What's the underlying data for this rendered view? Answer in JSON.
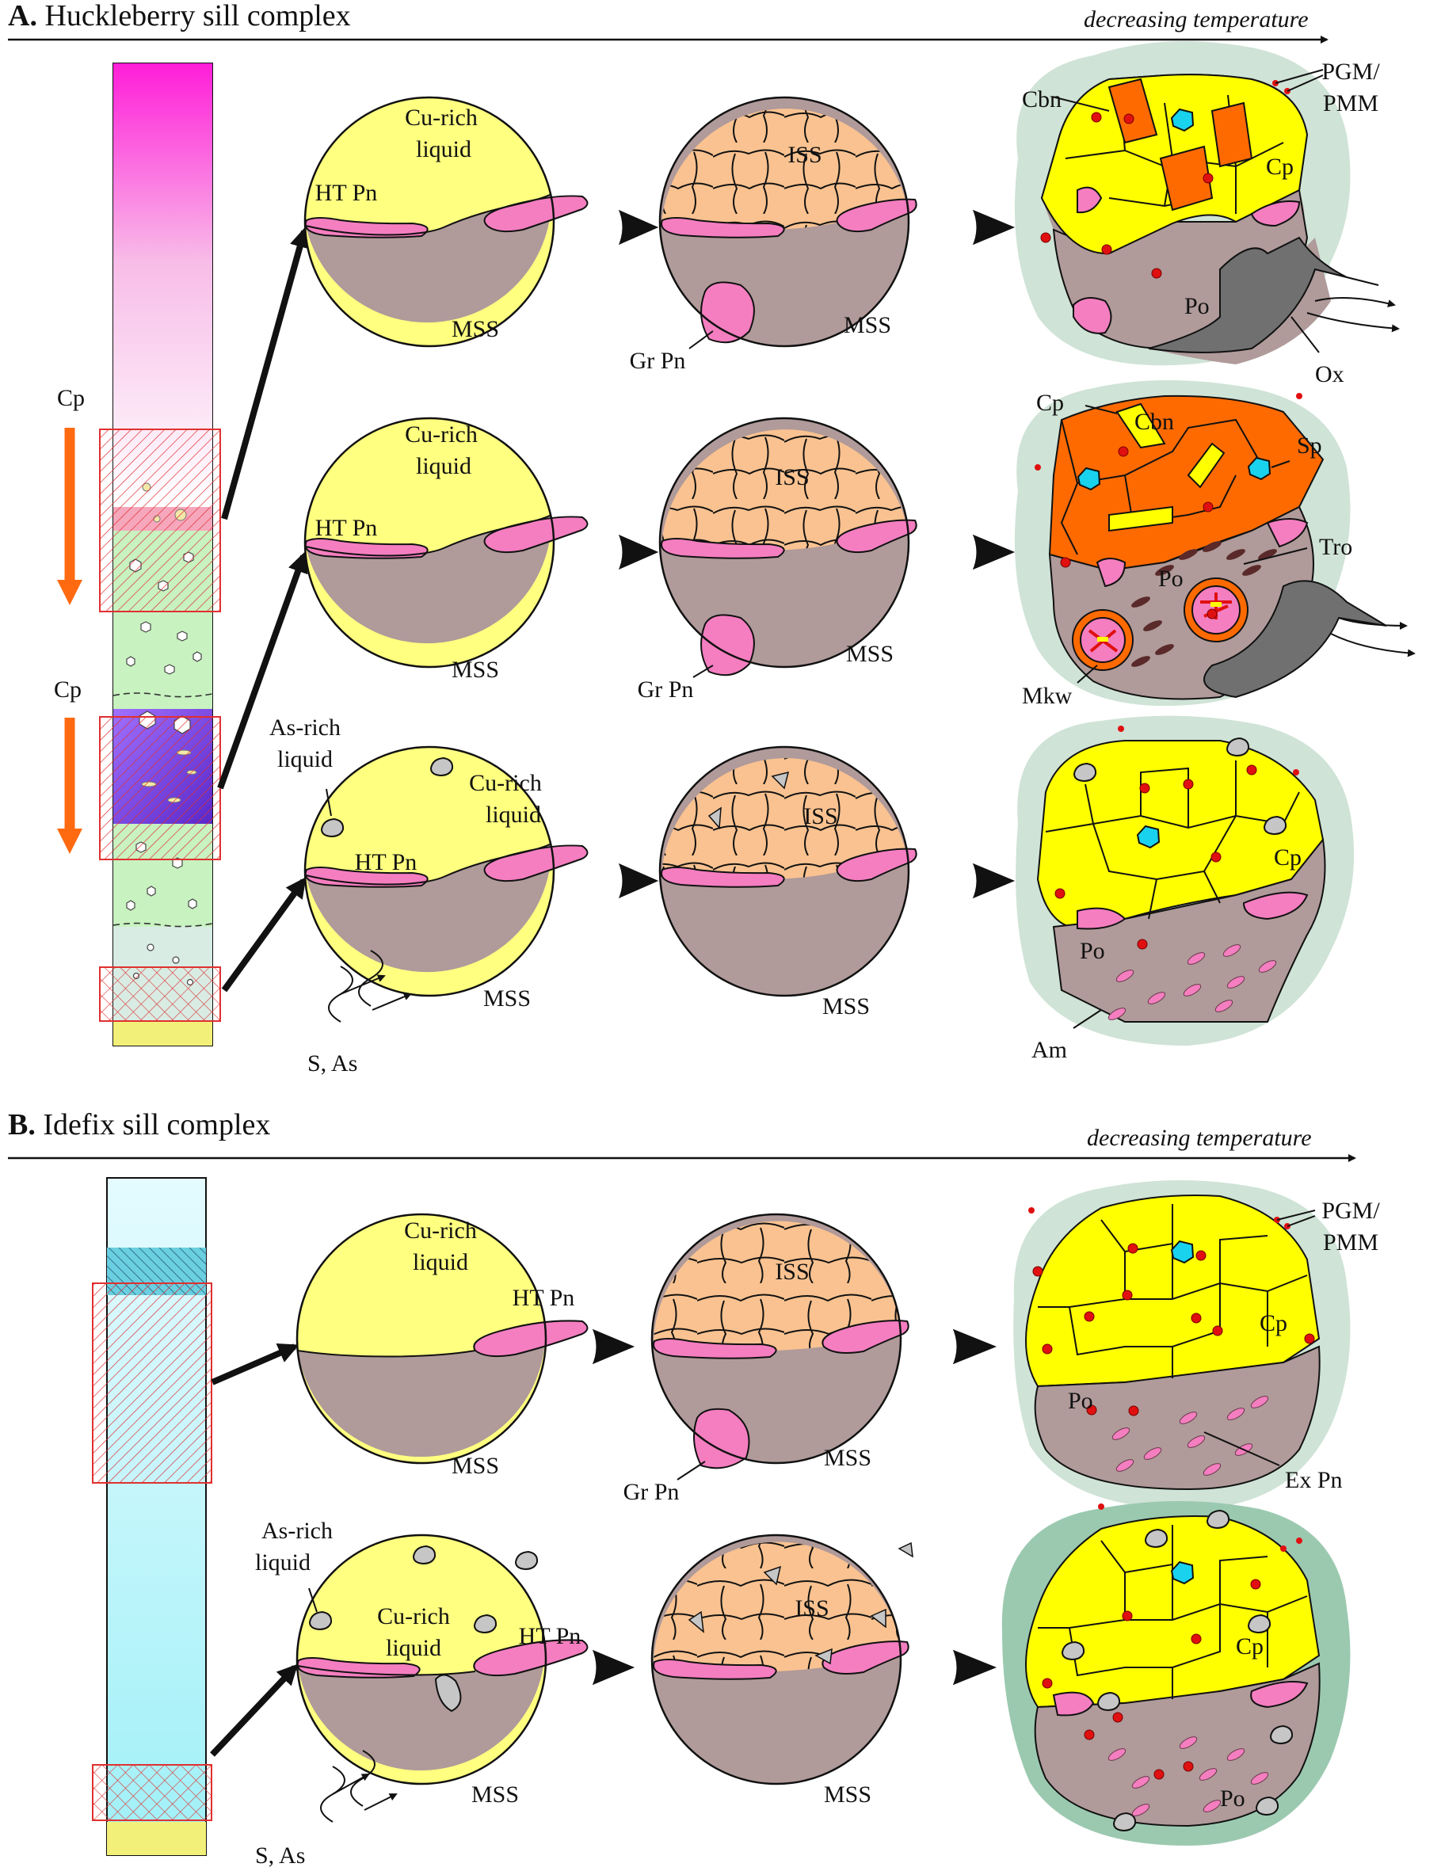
{
  "panel_a": {
    "letter": "A.",
    "title": "Huckleberry sill complex",
    "temperature": "decreasing temperature",
    "arrow_labels": [
      "Cp",
      "Cp"
    ],
    "stage1_labels": [
      "Cu-rich",
      "liquid",
      "HT Pn",
      "MSS",
      "As-rich",
      "liquid",
      "S, As"
    ],
    "stage2_labels": [
      "ISS",
      "MSS",
      "Gr Pn"
    ],
    "final_labels": [
      "Cbn",
      "PGM/",
      "PMM",
      "Cp",
      "Po",
      "Ox",
      "Sp",
      "Tro",
      "Mkw",
      "Am"
    ]
  },
  "panel_b": {
    "letter": "B.",
    "title": "Idefix sill complex",
    "temperature": "decreasing temperature",
    "stage1_labels": [
      "Cu-rich",
      "liquid",
      "HT Pn",
      "MSS",
      "As-rich",
      "liquid",
      "S, As"
    ],
    "stage2_labels": [
      "ISS",
      "MSS",
      "Gr Pn"
    ],
    "final_labels": [
      "PGM/",
      "PMM",
      "Cp",
      "Po",
      "Ex Pn"
    ]
  },
  "colors": {
    "mss": "#b09a9a",
    "liquid": "#ffff80",
    "pentlandite": "#f47ec0",
    "iss": "#f9c290",
    "chalcopyrite": "#ffff00",
    "cubanite": "#ff6a00",
    "as_liquid": "#c6c6c6",
    "halo": "#cfe3d6",
    "spinel": "#19d3ee",
    "pgm": "#e01010",
    "oxide": "#707070",
    "cp_arrow": "#ff6a10"
  }
}
